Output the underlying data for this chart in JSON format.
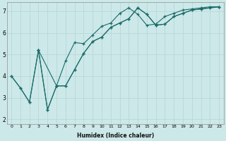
{
  "xlabel": "Humidex (Indice chaleur)",
  "bg_color": "#cce8e8",
  "line_color": "#1a6b6b",
  "grid_color": "#b8d8d8",
  "xlim": [
    -0.5,
    23.5
  ],
  "ylim": [
    1.8,
    7.4
  ],
  "yticks": [
    2,
    3,
    4,
    5,
    6,
    7
  ],
  "xticks": [
    0,
    1,
    2,
    3,
    4,
    5,
    6,
    7,
    8,
    9,
    10,
    11,
    12,
    13,
    14,
    15,
    16,
    17,
    18,
    19,
    20,
    21,
    22,
    23
  ],
  "line1_x": [
    0,
    1,
    2,
    3,
    4,
    5,
    6,
    7,
    8,
    9,
    10,
    11,
    12,
    13,
    14,
    15,
    16,
    17,
    18,
    19,
    20,
    21,
    22,
    23
  ],
  "line1_y": [
    4.0,
    3.45,
    2.8,
    5.2,
    2.45,
    3.55,
    3.55,
    4.3,
    5.05,
    5.6,
    5.8,
    6.25,
    6.45,
    6.65,
    7.15,
    6.85,
    6.35,
    6.4,
    6.75,
    6.9,
    7.05,
    7.1,
    7.15,
    7.2
  ],
  "line2_x": [
    3,
    4,
    5,
    6,
    7,
    8,
    9,
    10,
    11,
    12,
    13,
    14,
    15,
    16,
    17,
    18,
    19,
    20,
    21,
    22,
    23
  ],
  "line2_y": [
    5.2,
    2.45,
    3.55,
    4.7,
    5.55,
    5.5,
    5.9,
    6.3,
    6.45,
    6.9,
    7.15,
    6.85,
    6.35,
    6.4,
    6.75,
    6.9,
    7.05,
    7.1,
    7.15,
    7.2,
    7.2
  ],
  "line3_x": [
    0,
    1,
    2,
    3,
    5,
    6,
    7,
    8,
    9,
    10,
    11,
    12,
    13,
    14,
    15,
    16,
    17,
    18,
    19,
    20,
    21,
    22,
    23
  ],
  "line3_y": [
    4.0,
    3.45,
    2.8,
    5.2,
    3.55,
    3.55,
    4.3,
    5.05,
    5.6,
    5.8,
    6.25,
    6.45,
    6.65,
    7.15,
    6.85,
    6.35,
    6.4,
    6.75,
    6.9,
    7.05,
    7.1,
    7.15,
    7.2
  ]
}
